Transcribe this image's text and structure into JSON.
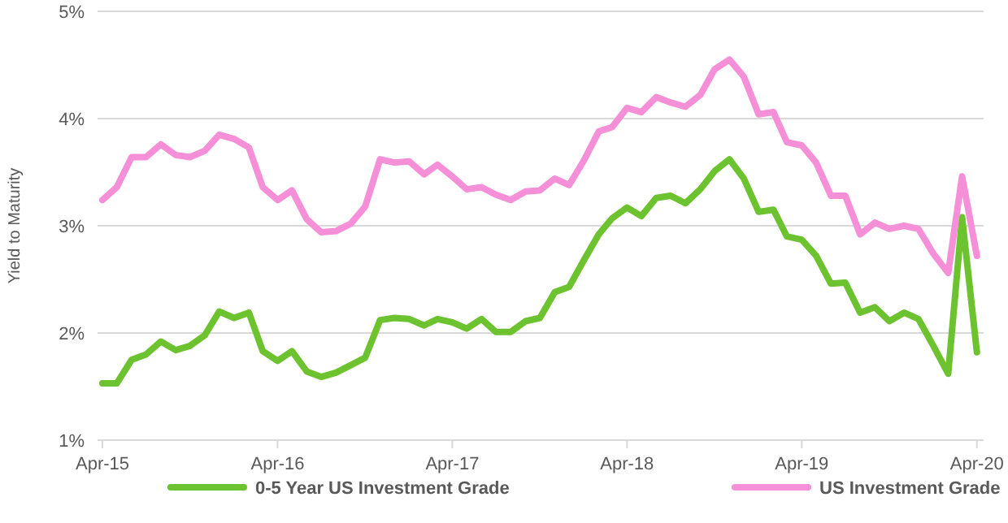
{
  "chart_data": {
    "type": "line",
    "ylabel": "Yield to Maturity",
    "xlim": [
      "2015-04",
      "2020-04-15"
    ],
    "ylim": [
      1,
      5
    ],
    "xticks": [
      {
        "value": "2015-04",
        "label": "Apr-15"
      },
      {
        "value": "2016-04",
        "label": "Apr-16"
      },
      {
        "value": "2017-04",
        "label": "Apr-17"
      },
      {
        "value": "2018-04",
        "label": "Apr-18"
      },
      {
        "value": "2019-04",
        "label": "Apr-19"
      },
      {
        "value": "2020-04",
        "label": "Apr-20"
      }
    ],
    "yticks": [
      {
        "value": 1,
        "label": "1%"
      },
      {
        "value": 2,
        "label": "2%"
      },
      {
        "value": 3,
        "label": "3%"
      },
      {
        "value": 4,
        "label": "4%"
      },
      {
        "value": 5,
        "label": "5%"
      }
    ],
    "grid": "y",
    "legend": "bottom",
    "marker": "none",
    "line_style": "solid",
    "x": [
      "2015-04",
      "2015-05",
      "2015-06",
      "2015-07",
      "2015-08",
      "2015-09",
      "2015-10",
      "2015-11",
      "2015-12",
      "2016-01",
      "2016-02",
      "2016-03",
      "2016-04",
      "2016-05",
      "2016-06",
      "2016-07",
      "2016-08",
      "2016-09",
      "2016-10",
      "2016-11",
      "2016-12",
      "2017-01",
      "2017-02",
      "2017-03",
      "2017-04",
      "2017-05",
      "2017-06",
      "2017-07",
      "2017-08",
      "2017-09",
      "2017-10",
      "2017-11",
      "2017-12",
      "2018-01",
      "2018-02",
      "2018-03",
      "2018-04",
      "2018-05",
      "2018-06",
      "2018-07",
      "2018-08",
      "2018-09",
      "2018-10",
      "2018-11",
      "2018-12",
      "2019-01",
      "2019-02",
      "2019-03",
      "2019-04",
      "2019-05",
      "2019-06",
      "2019-07",
      "2019-08",
      "2019-09",
      "2019-10",
      "2019-11",
      "2019-12",
      "2020-01",
      "2020-02",
      "2020-03",
      "2020-04"
    ],
    "series": [
      {
        "name": "0-5 Year US Investment Grade",
        "color": "#6dc22f",
        "values": [
          1.53,
          1.53,
          1.75,
          1.8,
          1.92,
          1.84,
          1.88,
          1.98,
          2.2,
          2.14,
          2.19,
          1.83,
          1.74,
          1.83,
          1.64,
          1.59,
          1.63,
          1.7,
          1.77,
          2.12,
          2.14,
          2.13,
          2.07,
          2.13,
          2.1,
          2.04,
          2.13,
          2.01,
          2.01,
          2.11,
          2.14,
          2.38,
          2.43,
          2.68,
          2.92,
          3.07,
          3.17,
          3.09,
          3.26,
          3.28,
          3.21,
          3.34,
          3.51,
          3.62,
          3.44,
          3.13,
          3.15,
          2.9,
          2.87,
          2.72,
          2.46,
          2.47,
          2.19,
          2.24,
          2.11,
          2.19,
          2.13,
          1.88,
          1.62,
          3.08,
          1.82
        ]
      },
      {
        "name": "US Investment Grade",
        "color": "#f48fd8",
        "values": [
          3.24,
          3.36,
          3.64,
          3.64,
          3.76,
          3.66,
          3.64,
          3.7,
          3.85,
          3.81,
          3.73,
          3.36,
          3.24,
          3.33,
          3.06,
          2.94,
          2.95,
          3.02,
          3.18,
          3.62,
          3.59,
          3.6,
          3.48,
          3.57,
          3.46,
          3.34,
          3.36,
          3.29,
          3.24,
          3.32,
          3.33,
          3.44,
          3.38,
          3.61,
          3.88,
          3.92,
          4.1,
          4.06,
          4.2,
          4.15,
          4.11,
          4.22,
          4.46,
          4.55,
          4.39,
          4.04,
          4.06,
          3.78,
          3.75,
          3.59,
          3.28,
          3.28,
          2.92,
          3.03,
          2.97,
          3,
          2.97,
          2.74,
          2.56,
          3.46,
          2.72
        ]
      }
    ]
  }
}
